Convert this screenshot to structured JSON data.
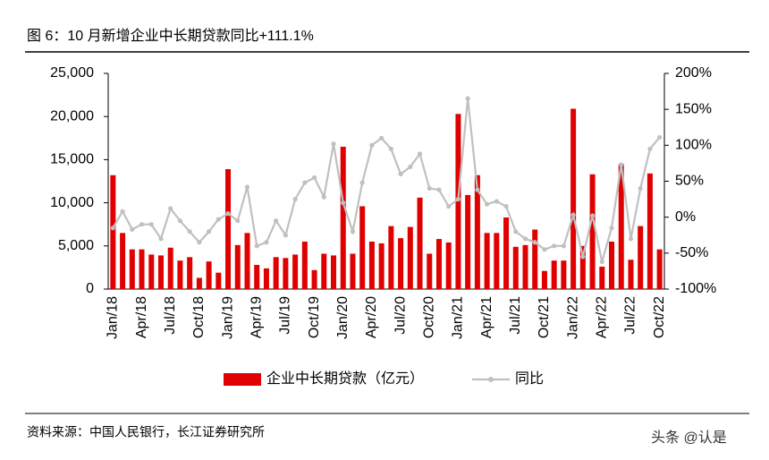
{
  "chart_data": {
    "type": "combo",
    "title": "图 6：10 月新增企业中长期贷款同比+111.1%",
    "source": "资料来源：中国人民银行，长江证券研究所",
    "watermark": "头条 @认是",
    "categories": [
      "Jan/18",
      null,
      null,
      "Apr/18",
      null,
      null,
      "Jul/18",
      null,
      null,
      "Oct/18",
      null,
      null,
      "Jan/19",
      null,
      null,
      "Apr/19",
      null,
      null,
      "Jul/19",
      null,
      null,
      "Oct/19",
      null,
      null,
      "Jan/20",
      null,
      null,
      "Apr/20",
      null,
      null,
      "Jul/20",
      null,
      null,
      "Oct/20",
      null,
      null,
      "Jan/21",
      null,
      null,
      "Apr/21",
      null,
      null,
      "Jul/21",
      null,
      null,
      "Oct/21",
      null,
      null,
      "Jan/22",
      null,
      null,
      "Apr/22",
      null,
      null,
      "Jul/22",
      null,
      null,
      "Oct/22"
    ],
    "series": [
      {
        "name": "企业中长期贷款（亿元）",
        "type": "bar",
        "axis": "y",
        "color": "#e00000",
        "values": [
          13200,
          6500,
          4600,
          4600,
          4000,
          3900,
          4800,
          3300,
          3700,
          1300,
          3200,
          1900,
          13900,
          5100,
          6500,
          2800,
          2400,
          3700,
          3600,
          4000,
          5500,
          2200,
          4100,
          3900,
          16500,
          4100,
          9600,
          5500,
          5300,
          7300,
          5900,
          7200,
          10600,
          4100,
          5800,
          5400,
          20300,
          10900,
          13200,
          6500,
          6500,
          8300,
          4900,
          5100,
          6900,
          2100,
          3300,
          3300,
          20900,
          5000,
          13300,
          2600,
          5500,
          14500,
          3400,
          7300,
          13400,
          4600
        ]
      },
      {
        "name": "同比",
        "type": "line",
        "axis": "y2",
        "color": "#c0c0c0",
        "values": [
          -15,
          8,
          -17,
          -10,
          -10,
          -30,
          12,
          -5,
          -20,
          -35,
          -20,
          -3,
          5,
          -5,
          42,
          -40,
          -35,
          -5,
          -25,
          25,
          48,
          55,
          28,
          102,
          20,
          -20,
          48,
          100,
          110,
          95,
          60,
          70,
          88,
          40,
          38,
          15,
          25,
          165,
          38,
          18,
          22,
          15,
          -20,
          -30,
          -35,
          -45,
          -40,
          -40,
          3,
          -55,
          2,
          -62,
          -15,
          73,
          -30,
          40,
          95,
          111.1
        ]
      }
    ],
    "ylim": [
      0,
      25000
    ],
    "yticks": [
      0,
      {
        "value": 5000,
        "label": "5,000"
      },
      {
        "value": 10000,
        "label": "10,000"
      },
      {
        "value": 15000,
        "label": "15,000"
      },
      {
        "value": 20000,
        "label": "20,000"
      },
      {
        "value": 25000,
        "label": "25,000"
      }
    ],
    "y2lim": [
      -100,
      200
    ],
    "y2ticks": [
      {
        "value": -100,
        "label": "-100%"
      },
      {
        "value": -50,
        "label": "-50%"
      },
      {
        "value": 0,
        "label": "0%"
      },
      {
        "value": 50,
        "label": "50%"
      },
      {
        "value": 100,
        "label": "100%"
      },
      {
        "value": 150,
        "label": "150%"
      },
      {
        "value": 200,
        "label": "200%"
      }
    ]
  }
}
